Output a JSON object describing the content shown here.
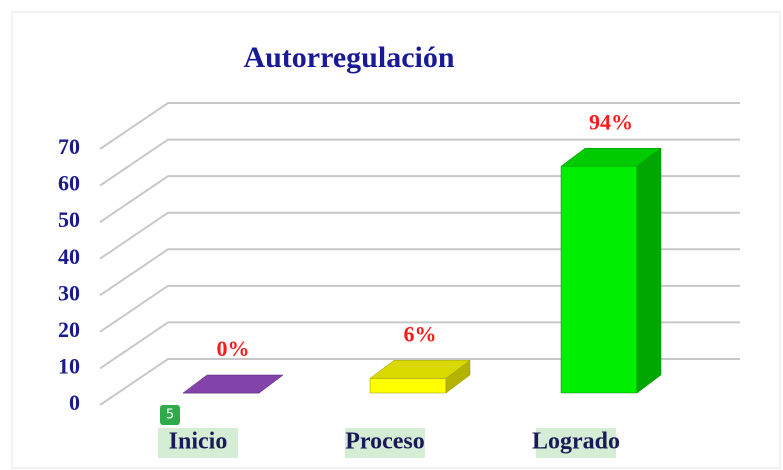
{
  "chart_data": {
    "type": "bar3d",
    "title": "Autorregulación",
    "categories": [
      "Inicio",
      "Proceso",
      "Logrado"
    ],
    "values": [
      0,
      4,
      62
    ],
    "value_labels": [
      "0%",
      "6%",
      "94%"
    ],
    "colors": [
      "#9b4fc8",
      "#ffff00",
      "#00ee00"
    ],
    "ylim": [
      0,
      70
    ],
    "yticks": [
      0,
      10,
      20,
      30,
      40,
      50,
      60,
      70
    ],
    "grid": true,
    "badge": "5"
  }
}
